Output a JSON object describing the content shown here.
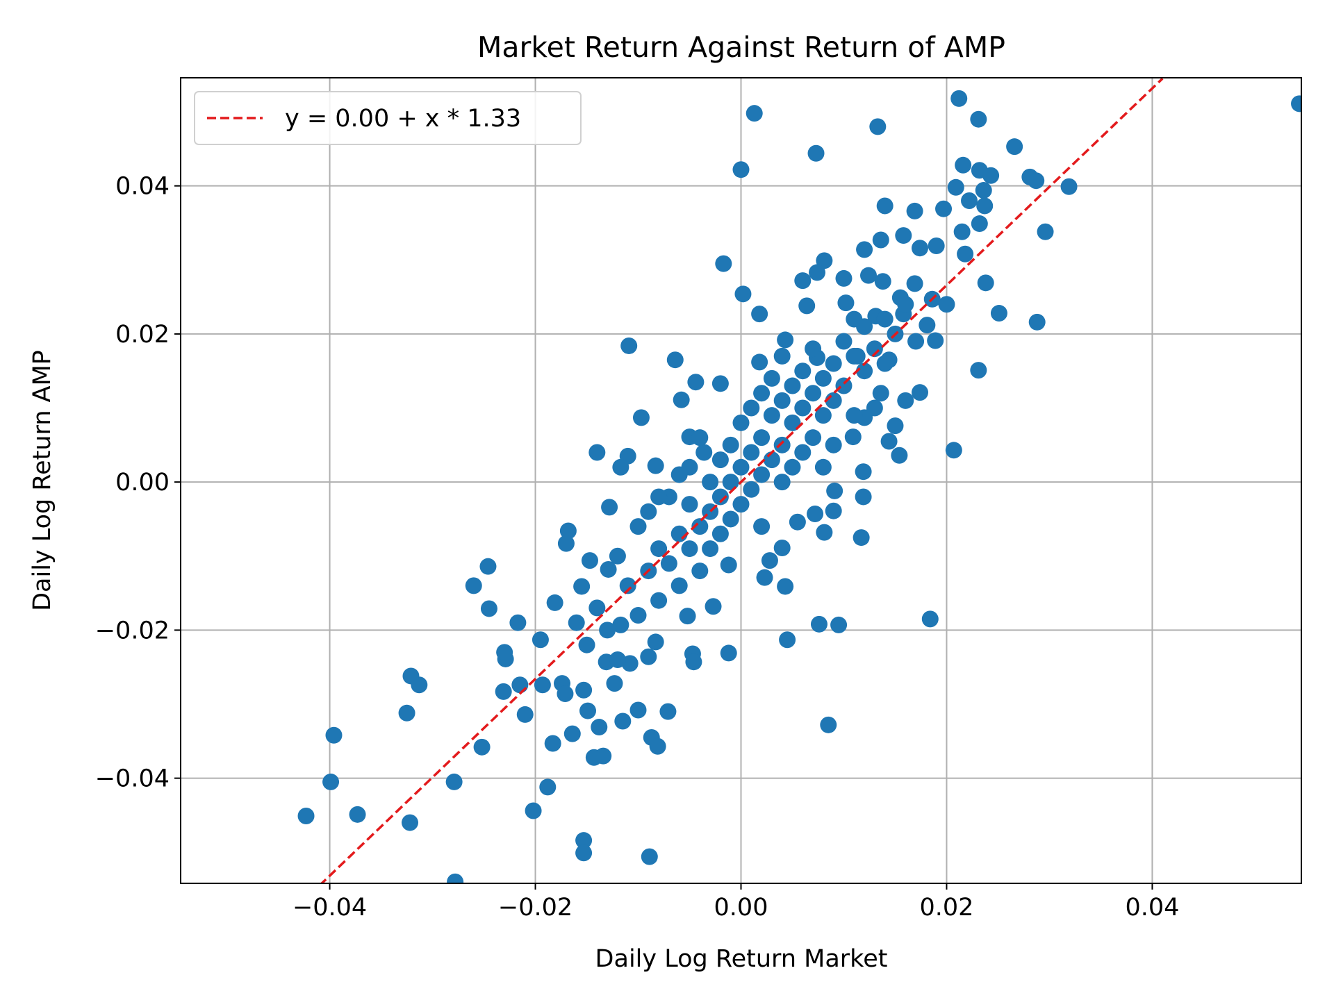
{
  "chart_data": {
    "type": "scatter",
    "title": "Market Return Against Return of AMP",
    "x_label": "Daily Log Return Market",
    "y_label": "Daily Log Return AMP",
    "xlim": [
      -0.0545,
      0.0545
    ],
    "ylim": [
      -0.0542,
      0.0546
    ],
    "xticks": [
      {
        "value": -0.04,
        "label": "−0.04"
      },
      {
        "value": -0.02,
        "label": "−0.02"
      },
      {
        "value": 0,
        "label": "0.00"
      },
      0.02,
      0.04
    ],
    "yticks": [
      {
        "value": -0.04,
        "label": "−0.04"
      },
      {
        "value": -0.02,
        "label": "−0.02"
      },
      {
        "value": 0,
        "label": "0.00"
      },
      0.02,
      0.04
    ],
    "grid": true,
    "legend": "upper left",
    "series": [
      {
        "kind": "scatter",
        "color": "#1f77b4",
        "x": [
          0.0543,
          0.0212,
          0.0013,
          0.0133,
          0.0231,
          0.0073,
          0.0,
          0.0266,
          0.0216,
          0.0232,
          0.0243,
          0.0281,
          0.0287,
          0.0319,
          0.0209,
          0.0236,
          0.0222,
          0.0237,
          0.014,
          0.0169,
          0.0197,
          0.0296,
          0.0232,
          0.0215,
          0.0158,
          0.0136,
          0.0174,
          0.019,
          0.012,
          -0.0017,
          0.0081,
          0.0074,
          0.0218,
          0.0238,
          0.0124,
          0.01,
          0.006,
          0.0138,
          0.0169,
          0.0002,
          0.02,
          0.0155,
          0.0064,
          0.0102,
          0.0251,
          0.0018,
          0.0288,
          0.0186,
          0.0158,
          0.0131,
          0.0181,
          0.0189,
          -0.0109,
          0.0043,
          -0.0064,
          0.0231,
          0.0144,
          0.0113,
          0.0074,
          0.0018,
          0.016,
          0.0174,
          0.0136,
          -0.0058,
          -0.0097,
          -0.0044,
          -0.002,
          0.015,
          0.0144,
          0.0154,
          0.0207,
          0.012,
          0.0109,
          0.0119,
          0.0119,
          0.0091,
          0.009,
          0.0117,
          0.0081,
          0.0072,
          0.0055,
          0.004,
          0.0028,
          0.0023,
          0.0043,
          0.0045,
          0.0076,
          0.0095,
          0.0184,
          0.0085,
          -0.0012,
          -0.0027,
          -0.0012,
          -0.0047,
          -0.0046,
          -0.0052,
          -0.0071,
          -0.0087,
          -0.0081,
          -0.0089,
          -0.01,
          -0.0115,
          -0.0123,
          -0.0131,
          -0.0143,
          -0.0134,
          -0.0138,
          -0.0149,
          -0.0153,
          -0.0164,
          -0.0153,
          -0.0153,
          -0.0183,
          -0.0174,
          -0.0171,
          -0.0188,
          -0.0202,
          -0.021,
          -0.0215,
          -0.0193,
          -0.0195,
          -0.0217,
          -0.0231,
          -0.0229,
          -0.023,
          -0.0252,
          -0.0245,
          -0.0246,
          -0.026,
          -0.0278,
          -0.0279,
          -0.0322,
          -0.0325,
          -0.0321,
          -0.0313,
          -0.0373,
          -0.0396,
          -0.0399,
          -0.0423,
          -0.0181,
          -0.0168,
          -0.017,
          -0.014,
          -0.011,
          -0.0117,
          -0.0083,
          -0.0128,
          -0.0117,
          -0.0108,
          -0.0083,
          -0.009,
          -0.0147,
          -0.0155,
          -0.0129,
          -0.0036,
          -0.005,
          -0.012,
          -0.011,
          -0.01,
          -0.01,
          -0.009,
          -0.009,
          -0.008,
          -0.008,
          -0.007,
          -0.007,
          -0.006,
          -0.006,
          -0.005,
          -0.005,
          -0.005,
          -0.004,
          -0.004,
          -0.003,
          -0.003,
          -0.003,
          -0.002,
          -0.002,
          -0.002,
          -0.001,
          -0.001,
          -0.001,
          0.0,
          0.0,
          0.0,
          0.001,
          0.001,
          0.001,
          0.002,
          0.002,
          0.002,
          0.003,
          0.003,
          0.003,
          0.004,
          0.004,
          0.004,
          0.005,
          0.005,
          0.005,
          0.006,
          0.006,
          0.006,
          0.007,
          0.007,
          0.007,
          0.008,
          0.008,
          0.009,
          0.009,
          0.009,
          0.01,
          0.01,
          0.011,
          0.011,
          0.012,
          0.012,
          0.013,
          0.014,
          0.014,
          0.015,
          -0.013,
          -0.014,
          -0.015,
          -0.016,
          -0.012,
          0.016,
          0.017,
          0.008,
          -0.006,
          0.002,
          0.004,
          -0.004,
          0.011,
          0.013,
          -0.008
        ],
        "values": [
          0.0511,
          0.0518,
          0.0498,
          0.048,
          0.049,
          0.0444,
          0.0422,
          0.0453,
          0.0428,
          0.0421,
          0.0414,
          0.0412,
          0.0407,
          0.0399,
          0.0398,
          0.0394,
          0.038,
          0.0373,
          0.0373,
          0.0366,
          0.0369,
          0.0338,
          0.0349,
          0.0338,
          0.0333,
          0.0327,
          0.0316,
          0.0319,
          0.0314,
          0.0295,
          0.0299,
          0.0283,
          0.0308,
          0.0269,
          0.0279,
          0.0275,
          0.0272,
          0.0271,
          0.0268,
          0.0254,
          0.024,
          0.0249,
          0.0238,
          0.0242,
          0.0228,
          0.0227,
          0.0216,
          0.0247,
          0.0227,
          0.0224,
          0.0212,
          0.0191,
          0.0184,
          0.0192,
          0.0165,
          0.0151,
          0.0165,
          0.017,
          0.0168,
          0.0162,
          0.011,
          0.0121,
          0.012,
          0.0111,
          0.0087,
          0.0135,
          0.0133,
          0.0076,
          0.0055,
          0.0036,
          0.0043,
          0.0087,
          0.0061,
          0.0014,
          -0.002,
          -0.0012,
          -0.0039,
          -0.0075,
          -0.0068,
          -0.0043,
          -0.0054,
          -0.0089,
          -0.0106,
          -0.0129,
          -0.0141,
          -0.0213,
          -0.0192,
          -0.0193,
          -0.0185,
          -0.0328,
          -0.0231,
          -0.0168,
          -0.0112,
          -0.0232,
          -0.0243,
          -0.0181,
          -0.031,
          -0.0345,
          -0.0357,
          -0.0506,
          -0.0308,
          -0.0323,
          -0.0272,
          -0.0243,
          -0.0372,
          -0.037,
          -0.0331,
          -0.0309,
          -0.0281,
          -0.034,
          -0.0484,
          -0.0501,
          -0.0353,
          -0.0272,
          -0.0286,
          -0.0412,
          -0.0444,
          -0.0314,
          -0.0274,
          -0.0274,
          -0.0213,
          -0.019,
          -0.0283,
          -0.0239,
          -0.023,
          -0.0358,
          -0.0171,
          -0.0114,
          -0.014,
          -0.054,
          -0.0405,
          -0.046,
          -0.0312,
          -0.0262,
          -0.0274,
          -0.0449,
          -0.0342,
          -0.0405,
          -0.0451,
          -0.0163,
          -0.0066,
          -0.0083,
          0.004,
          0.0035,
          0.002,
          0.0022,
          -0.0034,
          -0.0193,
          -0.0245,
          -0.0216,
          -0.0236,
          -0.0106,
          -0.0141,
          -0.0118,
          0.004,
          0.0061,
          -0.01,
          -0.014,
          -0.006,
          -0.018,
          -0.012,
          -0.004,
          -0.009,
          -0.016,
          -0.002,
          -0.011,
          -0.007,
          -0.014,
          -0.003,
          -0.009,
          0.002,
          -0.006,
          -0.012,
          0.0,
          -0.004,
          -0.009,
          0.003,
          -0.002,
          -0.007,
          0.005,
          0.0,
          -0.005,
          0.008,
          0.002,
          -0.003,
          0.01,
          0.004,
          -0.001,
          0.012,
          0.006,
          0.001,
          0.009,
          0.003,
          0.014,
          0.011,
          0.005,
          0.0,
          0.013,
          0.008,
          0.002,
          0.015,
          0.01,
          0.004,
          0.012,
          0.006,
          0.018,
          0.014,
          0.009,
          0.016,
          0.011,
          0.005,
          0.019,
          0.013,
          0.017,
          0.009,
          0.021,
          0.015,
          0.018,
          0.022,
          0.016,
          0.02,
          -0.02,
          -0.017,
          -0.022,
          -0.019,
          -0.024,
          0.024,
          0.019,
          0.002,
          0.001,
          -0.006,
          0.017,
          0.006,
          0.022,
          0.01,
          -0.002
        ]
      },
      {
        "kind": "line",
        "name": "y = 0.00 + x * 1.33",
        "color": "#e31a1c",
        "dashed": true,
        "x": [
          -0.041,
          0.041
        ],
        "values": [
          -0.0545,
          0.0545
        ]
      }
    ]
  }
}
